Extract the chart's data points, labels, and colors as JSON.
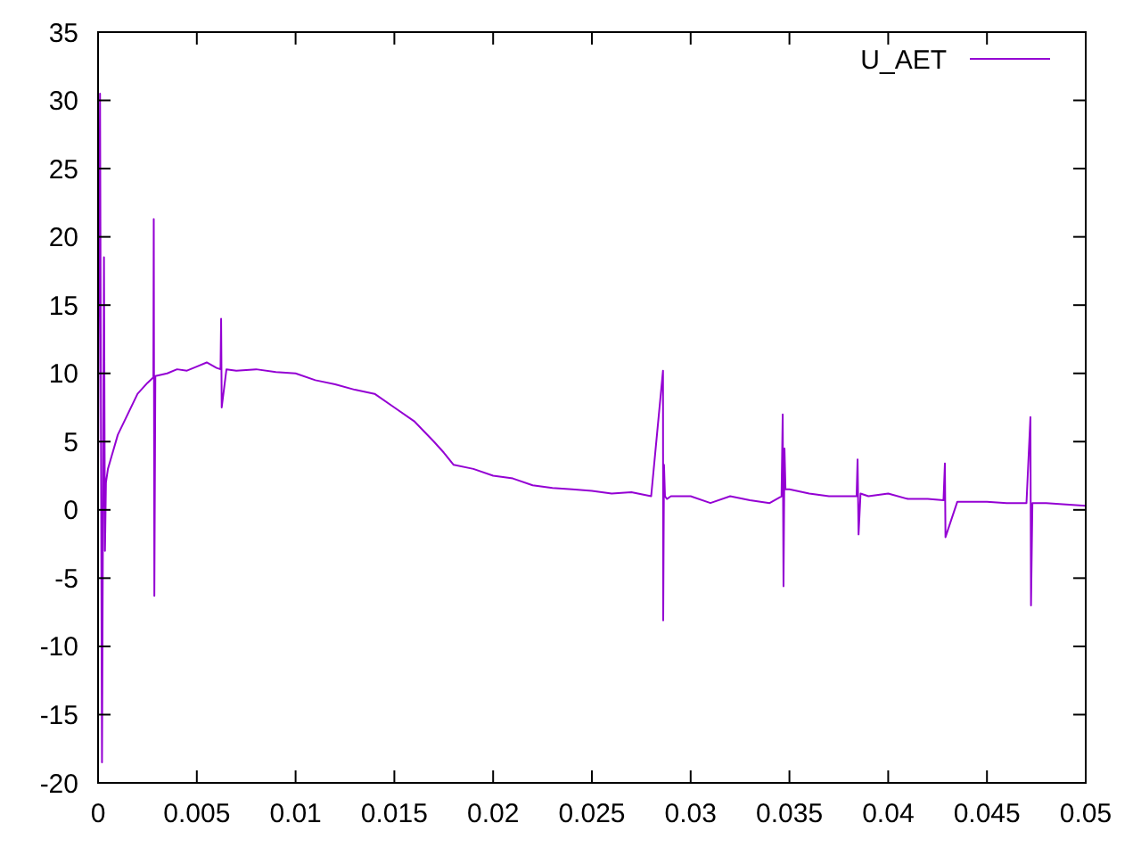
{
  "chart_data": {
    "type": "line",
    "legend": "top right",
    "grid": false,
    "xlim": [
      0,
      0.05
    ],
    "xticks": [
      0,
      0.005,
      0.01,
      0.015,
      0.02,
      0.025,
      0.03,
      0.035,
      0.04,
      0.045,
      0.05
    ],
    "ylim": [
      -20,
      35
    ],
    "yticks": [
      -20,
      -15,
      -10,
      -5,
      0,
      5,
      10,
      15,
      20,
      25,
      30,
      35
    ],
    "series": [
      {
        "name": "U_AET",
        "color": "#9400d3",
        "x": [
          0,
          0.0001,
          0.00015,
          0.0002,
          0.00025,
          0.0003,
          0.00035,
          0.0004,
          0.0005,
          0.0007,
          0.001,
          0.0015,
          0.002,
          0.0025,
          0.0028,
          0.00282,
          0.00285,
          0.0029,
          0.0032,
          0.0035,
          0.004,
          0.0045,
          0.005,
          0.0055,
          0.006,
          0.0062,
          0.00623,
          0.00626,
          0.0065,
          0.007,
          0.008,
          0.009,
          0.01,
          0.011,
          0.012,
          0.013,
          0.014,
          0.015,
          0.016,
          0.017,
          0.0175,
          0.018,
          0.019,
          0.02,
          0.021,
          0.022,
          0.023,
          0.024,
          0.025,
          0.026,
          0.027,
          0.028,
          0.0286,
          0.02861,
          0.02865,
          0.0287,
          0.0288,
          0.029,
          0.03,
          0.031,
          0.032,
          0.033,
          0.034,
          0.0346,
          0.03466,
          0.0347,
          0.03475,
          0.0348,
          0.035,
          0.036,
          0.037,
          0.038,
          0.0384,
          0.03845,
          0.0385,
          0.0386,
          0.039,
          0.04,
          0.041,
          0.042,
          0.0428,
          0.04287,
          0.0429,
          0.0435,
          0.045,
          0.046,
          0.047,
          0.0472,
          0.04723,
          0.0473,
          0.048,
          0.049,
          0.05
        ],
        "values": [
          3,
          30.5,
          5,
          -18.5,
          0,
          18.5,
          -3,
          2,
          3,
          4,
          5.5,
          7,
          8.5,
          9.3,
          9.7,
          21.3,
          -6.3,
          9.8,
          9.9,
          10,
          10.3,
          10.2,
          10.5,
          10.8,
          10.4,
          10.3,
          14,
          7.5,
          10.3,
          10.2,
          10.3,
          10.1,
          10,
          9.5,
          9.2,
          8.8,
          8.5,
          7.5,
          6.5,
          5,
          4.2,
          3.3,
          3,
          2.5,
          2.3,
          1.8,
          1.6,
          1.5,
          1.4,
          1.2,
          1.3,
          1,
          10.2,
          -8.1,
          3.3,
          1,
          0.8,
          1,
          1,
          0.5,
          1,
          0.7,
          0.5,
          1,
          7,
          -5.6,
          4.5,
          1.5,
          1.5,
          1.2,
          1,
          1,
          1,
          3.7,
          -1.8,
          1.2,
          1,
          1.2,
          0.8,
          0.8,
          0.7,
          3.4,
          -2,
          0.6,
          0.6,
          0.5,
          0.5,
          6.8,
          -7,
          0.5,
          0.5,
          0.4,
          0.3
        ]
      }
    ]
  }
}
